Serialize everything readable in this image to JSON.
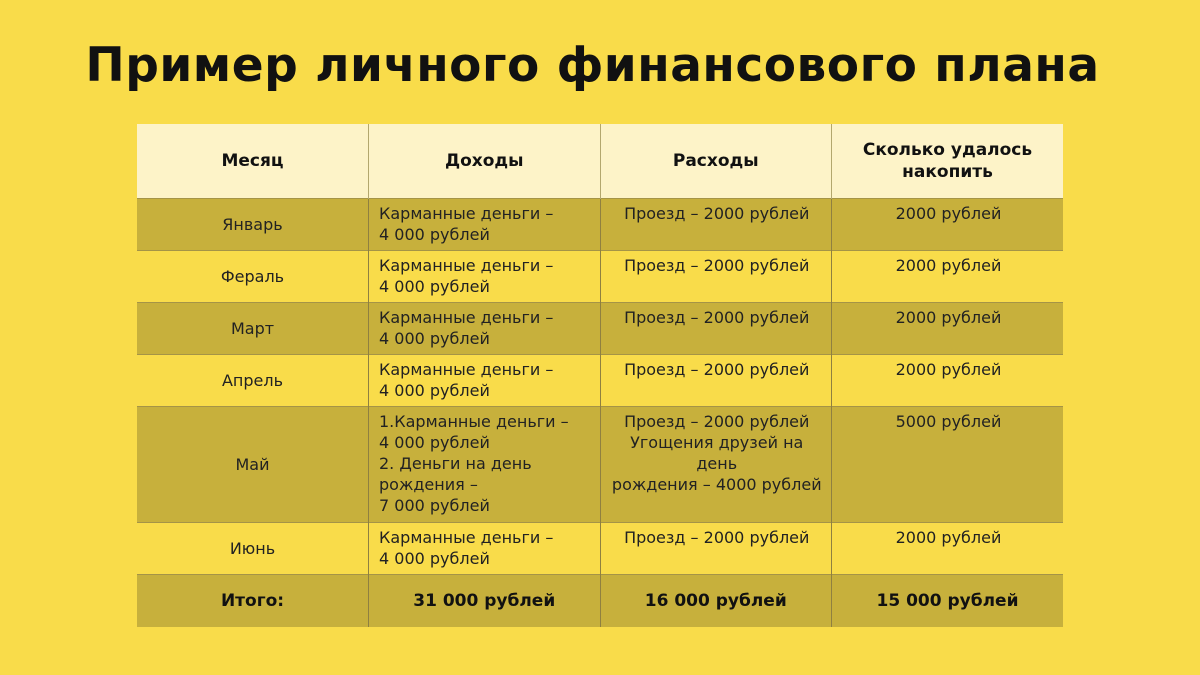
{
  "title": "Пример личного финансового плана",
  "table": {
    "headers": [
      "Месяц",
      "Доходы",
      "Расходы",
      "Сколько удалось накопить"
    ],
    "rows": [
      {
        "month": "Январь",
        "income": [
          "Карманные деньги –",
          "4 000 рублей"
        ],
        "expenses": [
          "Проезд – 2000 рублей"
        ],
        "savings": "2000 рублей"
      },
      {
        "month": "Фераль",
        "income": [
          "Карманные деньги –",
          "4 000 рублей"
        ],
        "expenses": [
          "Проезд – 2000 рублей"
        ],
        "savings": "2000 рублей"
      },
      {
        "month": "Март",
        "income": [
          "Карманные деньги –",
          "4 000 рублей"
        ],
        "expenses": [
          "Проезд – 2000 рублей"
        ],
        "savings": "2000 рублей"
      },
      {
        "month": "Апрель",
        "income": [
          "Карманные деньги –",
          "4 000 рублей"
        ],
        "expenses": [
          "Проезд – 2000 рублей"
        ],
        "savings": "2000 рублей"
      },
      {
        "month": "Май",
        "income": [
          "1.Карманные деньги –",
          "4 000 рублей",
          "2. Деньги на день",
          "рождения –",
          "7 000 рублей"
        ],
        "expenses": [
          "Проезд – 2000 рублей",
          "Угощения друзей на день",
          "рождения – 4000 рублей"
        ],
        "savings": "5000 рублей"
      },
      {
        "month": "Июнь",
        "income": [
          "Карманные деньги –",
          "4 000 рублей"
        ],
        "expenses": [
          "Проезд – 2000 рублей"
        ],
        "savings": "2000 рублей"
      }
    ],
    "total": {
      "label": "Итого:",
      "income": "31 000 рублей",
      "expenses": "16 000 рублей",
      "savings": "15 000 рублей"
    }
  },
  "colors": {
    "background": "#f9dc4a",
    "header": "#fdf3c8",
    "dark_row": "#c7b03c"
  }
}
